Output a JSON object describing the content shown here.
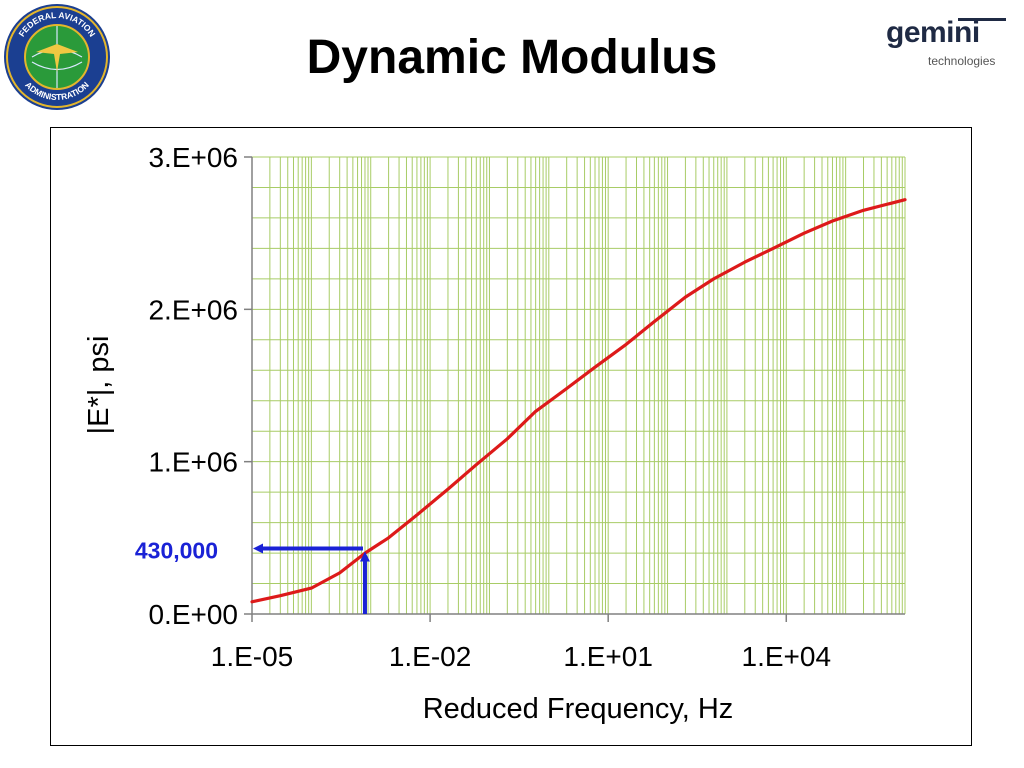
{
  "slide": {
    "title": "Dynamic Modulus"
  },
  "logos": {
    "left_seal": {
      "text_top": "FEDERAL AVIATION",
      "text_bottom": "ADMINISTRATION"
    },
    "right_brand": {
      "word": "gemini",
      "sub": "technologies"
    }
  },
  "colors": {
    "curve": "#dd1a1a",
    "grid": "#a8cc66",
    "annotation": "#1a22d6"
  },
  "chart_data": {
    "type": "line",
    "x_scale": "log",
    "xlabel": "Reduced Frequency,  Hz",
    "ylabel": "|E*|, psi",
    "xlim": [
      1e-05,
      1000000
    ],
    "ylim": [
      0,
      3000000
    ],
    "x_ticks": [
      {
        "value": 1e-05,
        "label": "1.E-05"
      },
      {
        "value": 0.01,
        "label": "1.E-02"
      },
      {
        "value": 10,
        "label": "1.E+01"
      },
      {
        "value": 10000,
        "label": "1.E+04"
      }
    ],
    "y_ticks": [
      {
        "value": 0,
        "label": "0.E+00"
      },
      {
        "value": 1000000,
        "label": "1.E+06"
      },
      {
        "value": 2000000,
        "label": "2.E+06"
      },
      {
        "value": 3000000,
        "label": "3.E+06"
      }
    ],
    "grid": true,
    "series": [
      {
        "x": [
          1e-05,
          3e-05,
          0.0001,
          0.0003,
          0.0008,
          0.002,
          0.006,
          0.02,
          0.06,
          0.2,
          0.6,
          2,
          6,
          20,
          60,
          200,
          600,
          2000,
          6000,
          20000,
          60000,
          200000,
          1000000
        ],
        "y": [
          80000,
          120000,
          170000,
          270000,
          400000,
          500000,
          650000,
          820000,
          980000,
          1150000,
          1330000,
          1480000,
          1620000,
          1770000,
          1920000,
          2080000,
          2200000,
          2310000,
          2400000,
          2500000,
          2580000,
          2650000,
          2720000
        ]
      }
    ],
    "annotation": {
      "label": "430,000",
      "x": 0.0008,
      "y": 430000
    }
  }
}
